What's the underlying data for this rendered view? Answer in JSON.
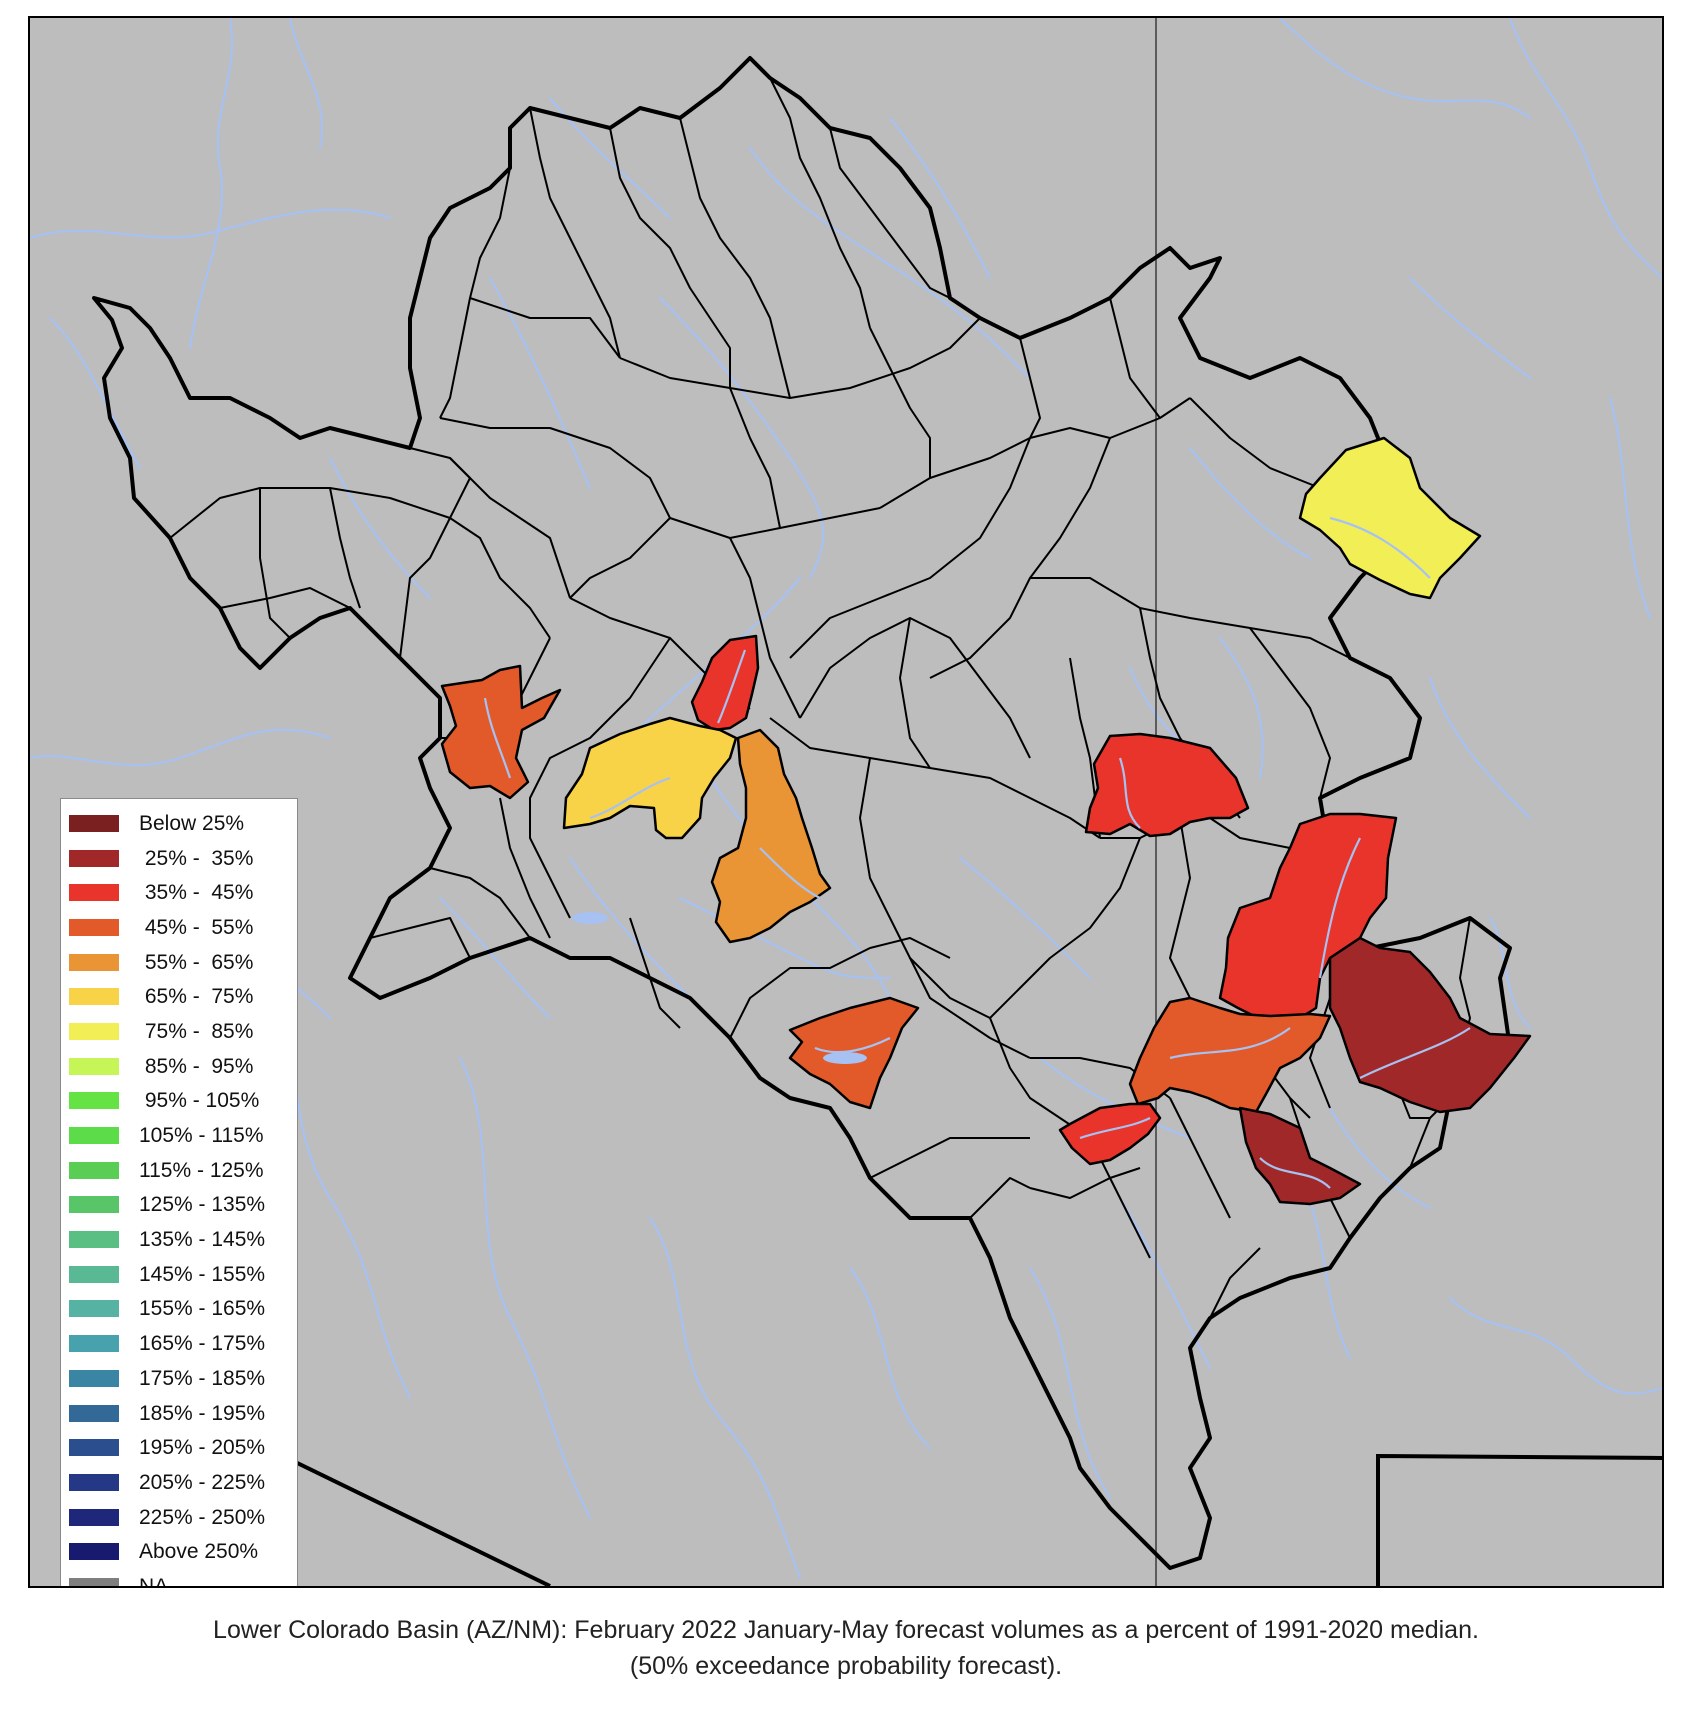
{
  "map": {
    "background_color": "#bdbdbd",
    "river_color": "#a6c1f2",
    "boundary_color": "#000000",
    "legend": [
      {
        "label": "Below 25%",
        "color": "#7a2020"
      },
      {
        "label": " 25% -  35%",
        "color": "#a12828"
      },
      {
        "label": " 35% -  45%",
        "color": "#e8342a"
      },
      {
        "label": " 45% -  55%",
        "color": "#e35a2a"
      },
      {
        "label": " 55% -  65%",
        "color": "#ea9535"
      },
      {
        "label": " 65% -  75%",
        "color": "#f8d347"
      },
      {
        "label": " 75% -  85%",
        "color": "#f1ef55"
      },
      {
        "label": " 85% -  95%",
        "color": "#c6f557"
      },
      {
        "label": " 95% - 105%",
        "color": "#66e344"
      },
      {
        "label": "105% - 115%",
        "color": "#5ddc4a"
      },
      {
        "label": "115% - 125%",
        "color": "#5acd55"
      },
      {
        "label": "125% - 135%",
        "color": "#59c569"
      },
      {
        "label": "135% - 145%",
        "color": "#5abf82"
      },
      {
        "label": "145% - 155%",
        "color": "#58b994"
      },
      {
        "label": "155% - 165%",
        "color": "#56b3a4"
      },
      {
        "label": "165% - 175%",
        "color": "#48a2ad"
      },
      {
        "label": "175% - 185%",
        "color": "#3b85a4"
      },
      {
        "label": "185% - 195%",
        "color": "#326996"
      },
      {
        "label": "195% - 205%",
        "color": "#2b4e8e"
      },
      {
        "label": "205% - 225%",
        "color": "#243886"
      },
      {
        "label": "225% - 250%",
        "color": "#1f277a"
      },
      {
        "label": "Above 250%",
        "color": "#171a6e"
      },
      {
        "label": "NA",
        "color": "#7f7f7f"
      }
    ]
  },
  "caption": {
    "line1": "Lower Colorado Basin (AZ/NM): February 2022 January-May forecast volumes as a percent of 1991-2020 median.",
    "line2": "(50% exceedance probability forecast)."
  }
}
